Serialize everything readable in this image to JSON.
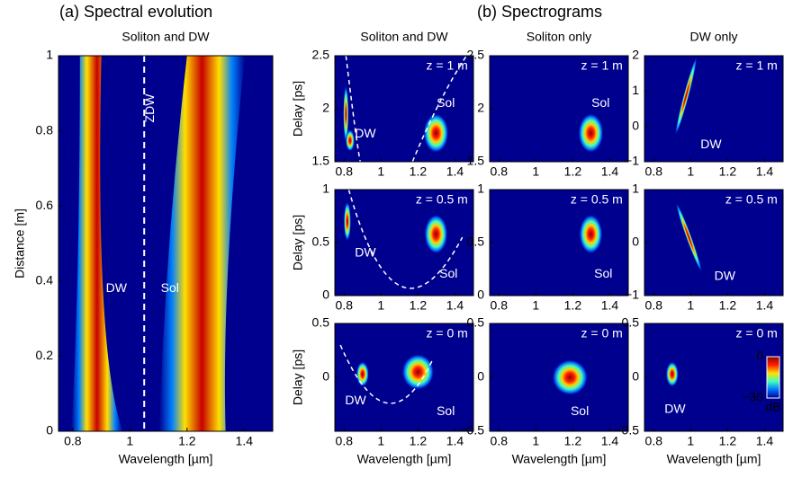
{
  "titles": [
    "(a) Spectral evolution",
    "(b) Spectrograms"
  ],
  "chart_data": [
    {
      "type": "heatmap",
      "title": "Soliton and DW",
      "xlabel": "Wavelength [µm]",
      "ylabel": "Distance [m]",
      "xlim": [
        0.75,
        1.5
      ],
      "xticks": [
        0.8,
        1,
        1.2,
        1.4
      ],
      "ylim": [
        0,
        1
      ],
      "yticks": [
        0,
        0.2,
        0.4,
        0.6,
        0.8,
        1
      ],
      "annotations": [
        "DW",
        "Sol",
        "ZDW"
      ]
    },
    {
      "type": "heatmap",
      "title": "Soliton and DW",
      "ylabel": "Delay [ps]",
      "xlim": [
        0.75,
        1.5
      ],
      "xticks": [
        0.8,
        1,
        1.2,
        1.4
      ],
      "ylim": [
        1.5,
        2.5
      ],
      "yticks": [
        1.5,
        2,
        2.5
      ],
      "annotations": [
        "z = 1 m",
        "DW",
        "Sol"
      ]
    },
    {
      "type": "heatmap",
      "title": "Soliton only",
      "xlim": [
        0.75,
        1.5
      ],
      "xticks": [
        0.8,
        1,
        1.2,
        1.4
      ],
      "ylim": [
        1.5,
        2.5
      ],
      "yticks": [
        1.5,
        2,
        2.5
      ],
      "annotations": [
        "z = 1 m",
        "Sol"
      ]
    },
    {
      "type": "heatmap",
      "title": "DW only",
      "xlim": [
        0.75,
        1.5
      ],
      "xticks": [
        0.8,
        1,
        1.2,
        1.4
      ],
      "ylim": [
        -1,
        2
      ],
      "yticks": [
        {
          "value": -1,
          "label": "−1"
        },
        0,
        1,
        2
      ],
      "annotations": [
        "z = 1 m",
        "DW"
      ]
    },
    {
      "type": "heatmap",
      "ylabel": "Delay [ps]",
      "xlim": [
        0.75,
        1.5
      ],
      "xticks": [
        0.8,
        1,
        1.2,
        1.4
      ],
      "ylim": [
        0,
        1
      ],
      "yticks": [
        0,
        0.5,
        1
      ],
      "annotations": [
        "z = 0.5 m",
        "DW",
        "Sol"
      ]
    },
    {
      "type": "heatmap",
      "xlim": [
        0.75,
        1.5
      ],
      "xticks": [
        0.8,
        1,
        1.2,
        1.4
      ],
      "ylim": [
        0,
        1
      ],
      "yticks": [
        0,
        0.5,
        1
      ],
      "annotations": [
        "z = 0.5 m",
        "Sol"
      ]
    },
    {
      "type": "heatmap",
      "xlim": [
        0.75,
        1.5
      ],
      "xticks": [
        0.8,
        1,
        1.2,
        1.4
      ],
      "ylim": [
        -1,
        1
      ],
      "yticks": [
        {
          "value": -1,
          "label": "−1"
        },
        0,
        1
      ],
      "annotations": [
        "z = 0.5 m",
        "DW"
      ]
    },
    {
      "type": "heatmap",
      "xlabel": "Wavelength [µm]",
      "ylabel": "Delay [ps]",
      "xlim": [
        0.75,
        1.5
      ],
      "xticks": [
        0.8,
        1,
        1.2,
        1.4
      ],
      "ylim": [
        -0.5,
        0.5
      ],
      "yticks": [
        0,
        0.5
      ],
      "annotations": [
        "z = 0 m",
        "DW",
        "Sol"
      ]
    },
    {
      "type": "heatmap",
      "xlabel": "Wavelength [µm]",
      "xlim": [
        0.75,
        1.5
      ],
      "xticks": [
        0.8,
        1,
        1.2,
        1.4
      ],
      "ylim": [
        -0.5,
        0.5
      ],
      "yticks": [
        {
          "value": -0.5,
          "label": "−0.5"
        },
        0,
        0.5
      ],
      "annotations": [
        "z = 0 m",
        "Sol"
      ]
    },
    {
      "type": "heatmap",
      "xlabel": "Wavelength [µm]",
      "xlim": [
        0.75,
        1.5
      ],
      "xticks": [
        0.8,
        1,
        1.2,
        1.4
      ],
      "ylim": [
        -0.5,
        0.5
      ],
      "yticks": [
        {
          "value": -0.5,
          "label": "−0.5"
        },
        0,
        0.5
      ],
      "annotations": [
        "z = 0 m",
        "DW"
      ],
      "colorbar": {
        "lim": [
          -30,
          0
        ],
        "ticks": [
          0,
          {
            "value": -30,
            "label": "−30"
          }
        ],
        "label": "dB"
      }
    }
  ]
}
